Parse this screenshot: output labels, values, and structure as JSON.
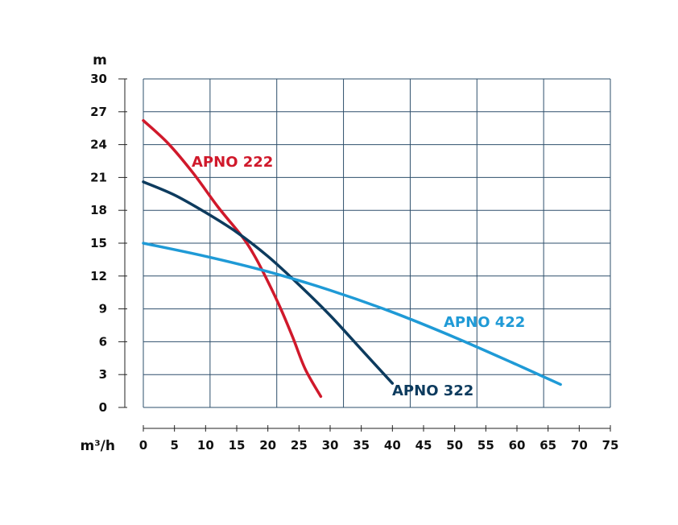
{
  "chart_data": {
    "type": "line",
    "title": "",
    "xlabel": "m³/h",
    "ylabel": "m",
    "xlim": [
      0,
      75
    ],
    "ylim": [
      0,
      30
    ],
    "x_ticks": [
      0,
      5,
      10,
      15,
      20,
      25,
      30,
      35,
      40,
      45,
      50,
      55,
      60,
      65,
      70,
      75
    ],
    "y_ticks": [
      0,
      3,
      6,
      9,
      12,
      15,
      18,
      21,
      24,
      27,
      30
    ],
    "grid": true,
    "grid_color": "#2e4f6b",
    "legend": "inline",
    "series": [
      {
        "name": "APNO 222",
        "color": "#d0192b",
        "x": [
          0,
          4,
          8,
          12,
          16,
          18,
          20,
          22,
          24,
          26,
          28.5
        ],
        "y": [
          26.2,
          24.1,
          21.4,
          18.3,
          15.5,
          13.7,
          11.5,
          9.1,
          6.4,
          3.5,
          1.0
        ]
      },
      {
        "name": "APNO 322",
        "color": "#0d3b5e",
        "x": [
          0,
          5,
          10,
          15,
          20,
          25,
          30,
          35,
          40
        ],
        "y": [
          20.6,
          19.4,
          17.8,
          16.0,
          13.8,
          11.2,
          8.4,
          5.3,
          2.2
        ]
      },
      {
        "name": "APNO 422",
        "color": "#1f9ad6",
        "x": [
          0,
          10,
          20,
          30,
          40,
          50,
          60,
          67
        ],
        "y": [
          15.0,
          13.8,
          12.4,
          10.7,
          8.7,
          6.4,
          3.9,
          2.1
        ]
      }
    ]
  }
}
